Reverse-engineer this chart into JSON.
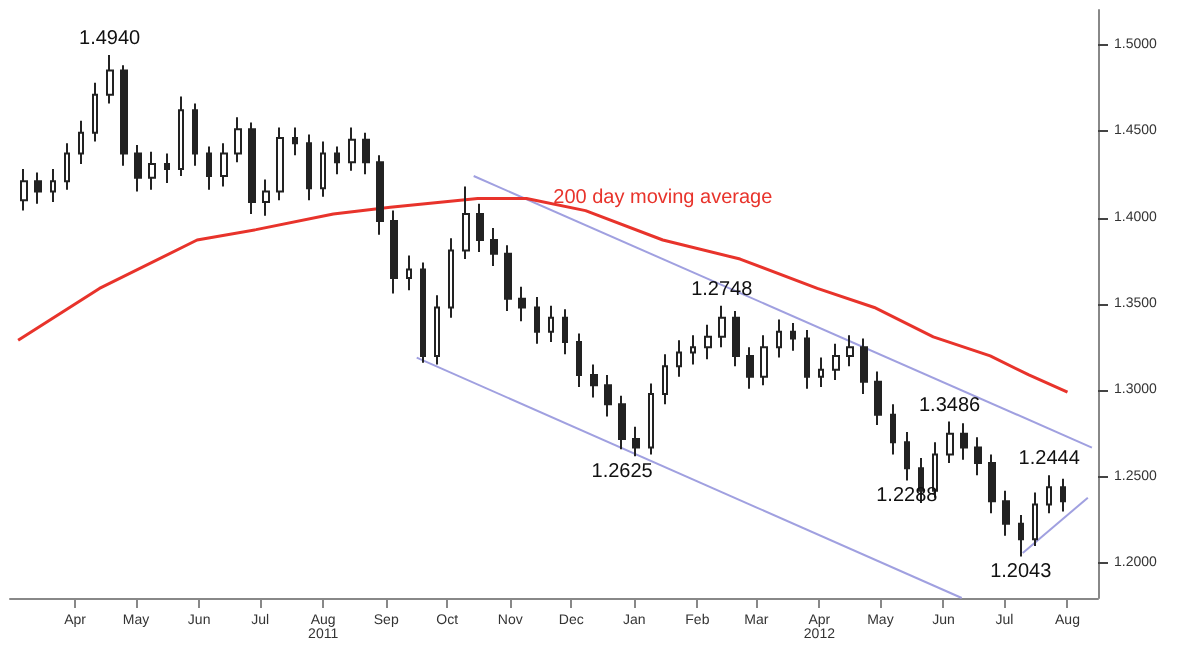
{
  "chart_data": {
    "type": "candlestick",
    "x": [
      "2011-03-21",
      "2011-03-28",
      "2011-04-04",
      "2011-04-11",
      "2011-04-18",
      "2011-04-25",
      "2011-05-02",
      "2011-05-09",
      "2011-05-16",
      "2011-05-23",
      "2011-05-30",
      "2011-06-06",
      "2011-06-13",
      "2011-06-20",
      "2011-06-27",
      "2011-07-04",
      "2011-07-11",
      "2011-07-18",
      "2011-07-25",
      "2011-08-01",
      "2011-08-08",
      "2011-08-15",
      "2011-08-22",
      "2011-08-29",
      "2011-09-05",
      "2011-09-12",
      "2011-09-19",
      "2011-09-26",
      "2011-10-03",
      "2011-10-10",
      "2011-10-17",
      "2011-10-24",
      "2011-10-31",
      "2011-11-07",
      "2011-11-14",
      "2011-11-21",
      "2011-11-28",
      "2011-12-05",
      "2011-12-12",
      "2011-12-19",
      "2011-12-26",
      "2012-01-02",
      "2012-01-09",
      "2012-01-16",
      "2012-01-23",
      "2012-01-30",
      "2012-02-06",
      "2012-02-13",
      "2012-02-20",
      "2012-02-27",
      "2012-03-05",
      "2012-03-12",
      "2012-03-19",
      "2012-03-26",
      "2012-04-02",
      "2012-04-09",
      "2012-04-16",
      "2012-04-23",
      "2012-04-30",
      "2012-05-07",
      "2012-05-14",
      "2012-05-21",
      "2012-05-28",
      "2012-06-04",
      "2012-06-11",
      "2012-06-18",
      "2012-06-25",
      "2012-07-02",
      "2012-07-09",
      "2012-07-16",
      "2012-07-23",
      "2012-07-30",
      "2012-08-06",
      "2012-08-13"
    ],
    "ohlc": [
      [
        1.41,
        1.428,
        1.404,
        1.421
      ],
      [
        1.421,
        1.426,
        1.408,
        1.415
      ],
      [
        1.415,
        1.428,
        1.409,
        1.421
      ],
      [
        1.421,
        1.443,
        1.416,
        1.437
      ],
      [
        1.437,
        1.456,
        1.431,
        1.449
      ],
      [
        1.449,
        1.478,
        1.444,
        1.471
      ],
      [
        1.471,
        1.494,
        1.466,
        1.485
      ],
      [
        1.485,
        1.488,
        1.43,
        1.437
      ],
      [
        1.437,
        1.442,
        1.415,
        1.423
      ],
      [
        1.423,
        1.438,
        1.416,
        1.431
      ],
      [
        1.431,
        1.437,
        1.42,
        1.428
      ],
      [
        1.428,
        1.47,
        1.424,
        1.462
      ],
      [
        1.462,
        1.466,
        1.43,
        1.437
      ],
      [
        1.437,
        1.441,
        1.416,
        1.424
      ],
      [
        1.424,
        1.443,
        1.418,
        1.437
      ],
      [
        1.437,
        1.458,
        1.432,
        1.451
      ],
      [
        1.451,
        1.455,
        1.402,
        1.409
      ],
      [
        1.409,
        1.422,
        1.401,
        1.415
      ],
      [
        1.415,
        1.452,
        1.41,
        1.446
      ],
      [
        1.446,
        1.452,
        1.436,
        1.443
      ],
      [
        1.443,
        1.448,
        1.41,
        1.417
      ],
      [
        1.417,
        1.444,
        1.412,
        1.437
      ],
      [
        1.437,
        1.441,
        1.425,
        1.432
      ],
      [
        1.432,
        1.452,
        1.427,
        1.445
      ],
      [
        1.445,
        1.449,
        1.425,
        1.432
      ],
      [
        1.432,
        1.436,
        1.39,
        1.398
      ],
      [
        1.398,
        1.404,
        1.356,
        1.365
      ],
      [
        1.365,
        1.378,
        1.358,
        1.37
      ],
      [
        1.37,
        1.374,
        1.316,
        1.32
      ],
      [
        1.32,
        1.355,
        1.315,
        1.348
      ],
      [
        1.348,
        1.388,
        1.342,
        1.381
      ],
      [
        1.381,
        1.418,
        1.376,
        1.402
      ],
      [
        1.402,
        1.408,
        1.38,
        1.387
      ],
      [
        1.387,
        1.394,
        1.372,
        1.379
      ],
      [
        1.379,
        1.384,
        1.346,
        1.353
      ],
      [
        1.353,
        1.36,
        1.34,
        1.348
      ],
      [
        1.348,
        1.354,
        1.327,
        1.334
      ],
      [
        1.334,
        1.349,
        1.328,
        1.342
      ],
      [
        1.342,
        1.347,
        1.321,
        1.328
      ],
      [
        1.328,
        1.333,
        1.302,
        1.309
      ],
      [
        1.309,
        1.315,
        1.296,
        1.303
      ],
      [
        1.303,
        1.309,
        1.285,
        1.292
      ],
      [
        1.292,
        1.297,
        1.266,
        1.272
      ],
      [
        1.272,
        1.279,
        1.262,
        1.267
      ],
      [
        1.267,
        1.304,
        1.263,
        1.298
      ],
      [
        1.298,
        1.321,
        1.292,
        1.314
      ],
      [
        1.314,
        1.329,
        1.308,
        1.322
      ],
      [
        1.322,
        1.332,
        1.315,
        1.325
      ],
      [
        1.325,
        1.338,
        1.318,
        1.331
      ],
      [
        1.331,
        1.349,
        1.325,
        1.342
      ],
      [
        1.342,
        1.346,
        1.314,
        1.32
      ],
      [
        1.32,
        1.325,
        1.301,
        1.308
      ],
      [
        1.308,
        1.332,
        1.303,
        1.325
      ],
      [
        1.325,
        1.341,
        1.319,
        1.334
      ],
      [
        1.334,
        1.339,
        1.323,
        1.33
      ],
      [
        1.33,
        1.335,
        1.301,
        1.308
      ],
      [
        1.308,
        1.319,
        1.302,
        1.312
      ],
      [
        1.312,
        1.327,
        1.306,
        1.32
      ],
      [
        1.32,
        1.332,
        1.314,
        1.325
      ],
      [
        1.325,
        1.33,
        1.298,
        1.305
      ],
      [
        1.305,
        1.311,
        1.28,
        1.286
      ],
      [
        1.286,
        1.292,
        1.263,
        1.27
      ],
      [
        1.27,
        1.276,
        1.248,
        1.255
      ],
      [
        1.255,
        1.261,
        1.235,
        1.242
      ],
      [
        1.242,
        1.27,
        1.238,
        1.263
      ],
      [
        1.263,
        1.282,
        1.258,
        1.275
      ],
      [
        1.275,
        1.281,
        1.26,
        1.267
      ],
      [
        1.267,
        1.273,
        1.251,
        1.258
      ],
      [
        1.258,
        1.263,
        1.229,
        1.236
      ],
      [
        1.236,
        1.242,
        1.216,
        1.223
      ],
      [
        1.223,
        1.228,
        1.204,
        1.214
      ],
      [
        1.214,
        1.241,
        1.21,
        1.234
      ],
      [
        1.234,
        1.251,
        1.229,
        1.244
      ],
      [
        1.244,
        1.249,
        1.23,
        1.236
      ]
    ],
    "color": "#222222",
    "series": [
      {
        "type": "line",
        "name": "200 day moving average",
        "color": "#e8332b",
        "x": [
          "2011-03-18",
          "2011-04-27",
          "2011-06-14",
          "2011-07-13",
          "2011-08-20",
          "2011-09-17",
          "2011-10-30",
          "2011-11-23",
          "2011-12-22",
          "2012-01-29",
          "2012-03-07",
          "2012-04-14",
          "2012-05-12",
          "2012-06-10",
          "2012-07-08",
          "2012-07-27",
          "2012-08-15"
        ],
        "values": [
          1.329,
          1.359,
          1.387,
          1.393,
          1.402,
          1.406,
          1.411,
          1.411,
          1.404,
          1.387,
          1.376,
          1.359,
          1.348,
          1.331,
          1.32,
          1.309,
          1.299
        ]
      },
      {
        "type": "line",
        "color": "#a0a0e0",
        "x": [
          "2011-10-28",
          "2012-08-27"
        ],
        "values": [
          1.424,
          1.267
        ]
      },
      {
        "type": "line",
        "color": "#a0a0e0",
        "x": [
          "2011-09-30",
          "2012-06-24"
        ],
        "values": [
          1.319,
          1.18
        ]
      },
      {
        "type": "line",
        "color": "#a0a0e0",
        "x": [
          "2012-07-24",
          "2012-08-25"
        ],
        "values": [
          1.206,
          1.238
        ]
      }
    ],
    "annotations": [
      {
        "text": "1.4940",
        "x": "2011-05-02",
        "y": 1.494
      },
      {
        "text": "1.2625",
        "x": "2012-01-09",
        "y": 1.262
      },
      {
        "text": "1.2748",
        "x": "2012-02-27",
        "y": 1.349
      },
      {
        "text": "1.3486",
        "x": "2012-06-18",
        "y": 1.282
      },
      {
        "text": "1.2288",
        "x": "2012-05-28",
        "y": 1.248
      },
      {
        "text": "1.2043",
        "x": "2012-07-23",
        "y": 1.204
      },
      {
        "text": "1.2444",
        "x": "2012-08-06",
        "y": 1.251
      }
    ],
    "xlim": [
      "2011-03-14",
      "2012-08-30"
    ],
    "xticks": [
      {
        "value": "2011-04-15",
        "label": "Apr"
      },
      {
        "value": "2011-05-15",
        "label": "May"
      },
      {
        "value": "2011-06-15",
        "label": "Jun"
      },
      {
        "value": "2011-07-15",
        "label": "Jul"
      },
      {
        "value": "2011-08-15",
        "label": "Aug\n2011"
      },
      {
        "value": "2011-09-15",
        "label": "Sep"
      },
      {
        "value": "2011-10-15",
        "label": "Oct"
      },
      {
        "value": "2011-11-15",
        "label": "Nov"
      },
      {
        "value": "2011-12-15",
        "label": "Dec"
      },
      {
        "value": "2012-01-15",
        "label": "Jan"
      },
      {
        "value": "2012-02-15",
        "label": "Feb"
      },
      {
        "value": "2012-03-15",
        "label": "Mar"
      },
      {
        "value": "2012-04-15",
        "label": "Apr\n2012"
      },
      {
        "value": "2012-05-15",
        "label": "May"
      },
      {
        "value": "2012-06-15",
        "label": "Jun"
      },
      {
        "value": "2012-07-15",
        "label": "Jul"
      },
      {
        "value": "2012-08-15",
        "label": "Aug"
      }
    ],
    "ylim": [
      1.18,
      1.52
    ],
    "yticks": [
      {
        "value": 1.2,
        "label": "1.2000"
      },
      {
        "value": 1.25,
        "label": "1.2500"
      },
      {
        "value": 1.3,
        "label": "1.3000"
      },
      {
        "value": 1.35,
        "label": "1.3500"
      },
      {
        "value": 1.4,
        "label": "1.4000"
      },
      {
        "value": 1.45,
        "label": "1.4500"
      },
      {
        "value": 1.5,
        "label": "1.5000"
      }
    ],
    "grid": false,
    "legend": false
  }
}
